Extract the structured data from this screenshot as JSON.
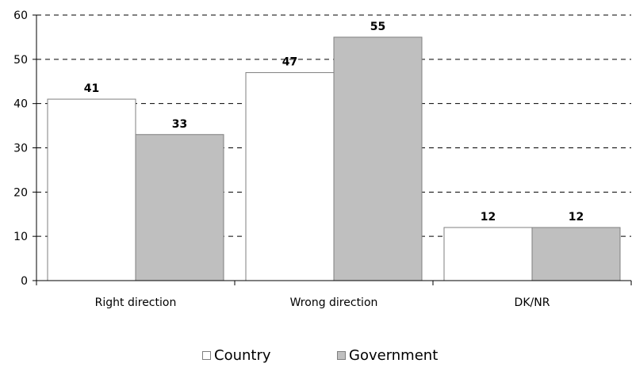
{
  "chart_data": {
    "type": "bar",
    "categories": [
      "Right direction",
      "Wrong direction",
      "DK/NR"
    ],
    "series": [
      {
        "name": "Country",
        "values": [
          41,
          47,
          12
        ],
        "color": "#ffffff"
      },
      {
        "name": "Government",
        "values": [
          33,
          55,
          12
        ],
        "color": "#bfbfbf"
      }
    ],
    "title": "",
    "xlabel": "",
    "ylabel": "",
    "ylim": [
      0,
      60
    ],
    "yticks": [
      0,
      10,
      20,
      30,
      40,
      50,
      60
    ],
    "grid": true,
    "legend_position": "bottom",
    "data_labels": true
  }
}
